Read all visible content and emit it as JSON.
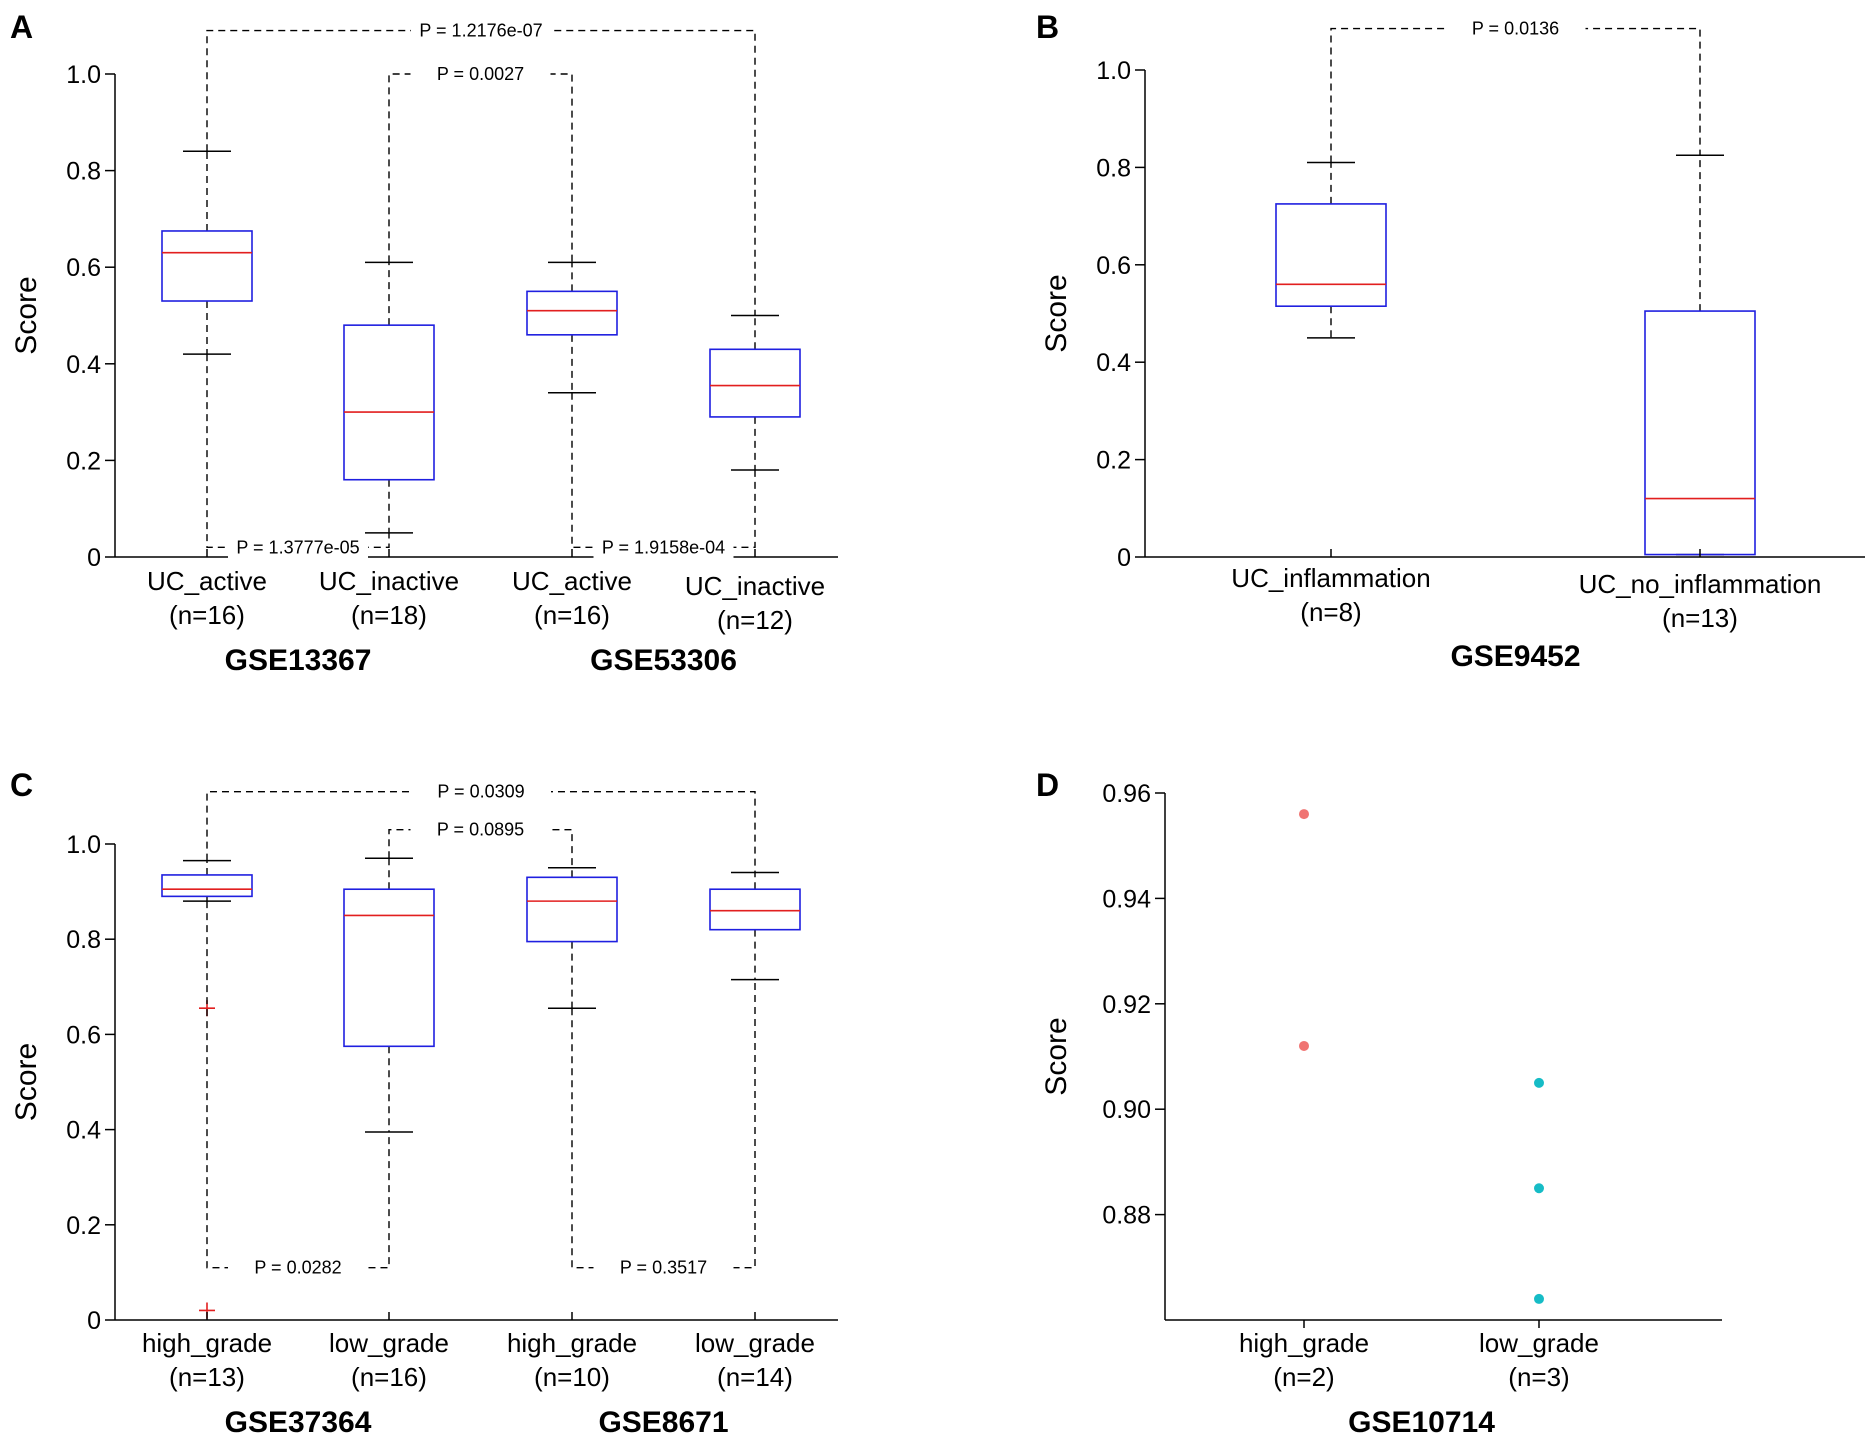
{
  "chart_data": [
    {
      "panel": "A",
      "type": "box",
      "ylabel": "Score",
      "ylim": [
        0,
        1
      ],
      "yticks": [
        0,
        0.2,
        0.4,
        0.6,
        0.8,
        1.0
      ],
      "ytick_labels": [
        "0",
        "0.2",
        "0.4",
        "0.6",
        "0.8",
        "1.0"
      ],
      "boxes": [
        {
          "category": "UC_active",
          "n_label": "(n=16)",
          "whisker_low": 0.42,
          "q1": 0.53,
          "median": 0.63,
          "q3": 0.675,
          "whisker_high": 0.84,
          "outliers": []
        },
        {
          "category": "UC_inactive",
          "n_label": "(n=18)",
          "whisker_low": 0.05,
          "q1": 0.16,
          "median": 0.3,
          "q3": 0.48,
          "whisker_high": 0.61,
          "outliers": []
        },
        {
          "category": "UC_active",
          "n_label": "(n=16)",
          "whisker_low": 0.34,
          "q1": 0.46,
          "median": 0.51,
          "q3": 0.55,
          "whisker_high": 0.61,
          "outliers": []
        },
        {
          "category": "UC_inactive",
          "n_label": "(n=12)",
          "whisker_low": 0.18,
          "q1": 0.29,
          "median": 0.355,
          "q3": 0.43,
          "whisker_high": 0.5,
          "outliers": []
        }
      ],
      "datasets": [
        {
          "name": "GSE13367",
          "boxes": [
            0,
            1
          ]
        },
        {
          "name": "GSE53306",
          "boxes": [
            2,
            3
          ]
        }
      ],
      "comparisons": [
        {
          "from": 0,
          "to": 3,
          "level": 1.09,
          "side": "top",
          "label": "P = 1.2176e-07"
        },
        {
          "from": 1,
          "to": 2,
          "level": 1.0,
          "side": "top",
          "label": "P = 0.0027"
        },
        {
          "from": 0,
          "to": 1,
          "level": 0.02,
          "side": "bottom",
          "label": "P = 1.3777e-05"
        },
        {
          "from": 2,
          "to": 3,
          "level": 0.02,
          "side": "bottom",
          "label": "P = 1.9158e-04"
        }
      ]
    },
    {
      "panel": "B",
      "type": "box",
      "ylabel": "Score",
      "ylim": [
        0,
        1
      ],
      "yticks": [
        0,
        0.2,
        0.4,
        0.6,
        0.8,
        1.0
      ],
      "ytick_labels": [
        "0",
        "0.2",
        "0.4",
        "0.6",
        "0.8",
        "1.0"
      ],
      "boxes": [
        {
          "category": "UC_inflammation",
          "n_label": "(n=8)",
          "whisker_low": 0.45,
          "q1": 0.515,
          "median": 0.56,
          "q3": 0.725,
          "whisker_high": 0.81,
          "outliers": []
        },
        {
          "category": "UC_no_inflammation",
          "n_label": "(n=13)",
          "whisker_low": 0.005,
          "q1": 0.005,
          "median": 0.12,
          "q3": 0.505,
          "whisker_high": 0.825,
          "outliers": []
        }
      ],
      "datasets": [
        {
          "name": "GSE9452",
          "boxes": [
            0,
            1
          ]
        }
      ],
      "comparisons": [
        {
          "from": 0,
          "to": 1,
          "level": 1.085,
          "side": "top",
          "label": "P = 0.0136"
        }
      ]
    },
    {
      "panel": "C",
      "type": "box",
      "ylabel": "Score",
      "ylim": [
        0,
        1
      ],
      "yticks": [
        0,
        0.2,
        0.4,
        0.6,
        0.8,
        1.0
      ],
      "ytick_labels": [
        "0",
        "0.2",
        "0.4",
        "0.6",
        "0.8",
        "1.0"
      ],
      "boxes": [
        {
          "category": "high_grade",
          "n_label": "(n=13)",
          "whisker_low": 0.88,
          "q1": 0.89,
          "median": 0.905,
          "q3": 0.935,
          "whisker_high": 0.965,
          "outliers": [
            0.655,
            0.02
          ]
        },
        {
          "category": "low_grade",
          "n_label": "(n=16)",
          "whisker_low": 0.395,
          "q1": 0.575,
          "median": 0.85,
          "q3": 0.905,
          "whisker_high": 0.97,
          "outliers": []
        },
        {
          "category": "high_grade",
          "n_label": "(n=10)",
          "whisker_low": 0.655,
          "q1": 0.795,
          "median": 0.88,
          "q3": 0.93,
          "whisker_high": 0.95,
          "outliers": []
        },
        {
          "category": "low_grade",
          "n_label": "(n=14)",
          "whisker_low": 0.715,
          "q1": 0.82,
          "median": 0.86,
          "q3": 0.905,
          "whisker_high": 0.94,
          "outliers": []
        }
      ],
      "datasets": [
        {
          "name": "GSE37364",
          "boxes": [
            0,
            1
          ]
        },
        {
          "name": "GSE8671",
          "boxes": [
            2,
            3
          ]
        }
      ],
      "comparisons": [
        {
          "from": 0,
          "to": 3,
          "level": 1.11,
          "side": "top",
          "label": "P = 0.0309"
        },
        {
          "from": 1,
          "to": 2,
          "level": 1.03,
          "side": "top",
          "label": "P = 0.0895"
        },
        {
          "from": 0,
          "to": 1,
          "level": 0.11,
          "side": "bottom",
          "label": "P = 0.0282"
        },
        {
          "from": 2,
          "to": 3,
          "level": 0.11,
          "side": "bottom",
          "label": "P = 0.3517"
        }
      ]
    },
    {
      "panel": "D",
      "type": "scatter",
      "ylabel": "Score",
      "ylim": [
        0.86,
        0.96
      ],
      "yticks": [
        0.88,
        0.9,
        0.92,
        0.94,
        0.96
      ],
      "ytick_labels": [
        "0.88",
        "0.90",
        "0.92",
        "0.94",
        "0.96"
      ],
      "groups": [
        {
          "category": "high_grade",
          "n_label": "(n=2)",
          "color": "#f07472",
          "values": [
            0.956,
            0.912
          ]
        },
        {
          "category": "low_grade",
          "n_label": "(n=3)",
          "color": "#16bcc6",
          "values": [
            0.905,
            0.885,
            0.864
          ]
        }
      ],
      "datasets": [
        {
          "name": "GSE10714"
        }
      ]
    }
  ]
}
